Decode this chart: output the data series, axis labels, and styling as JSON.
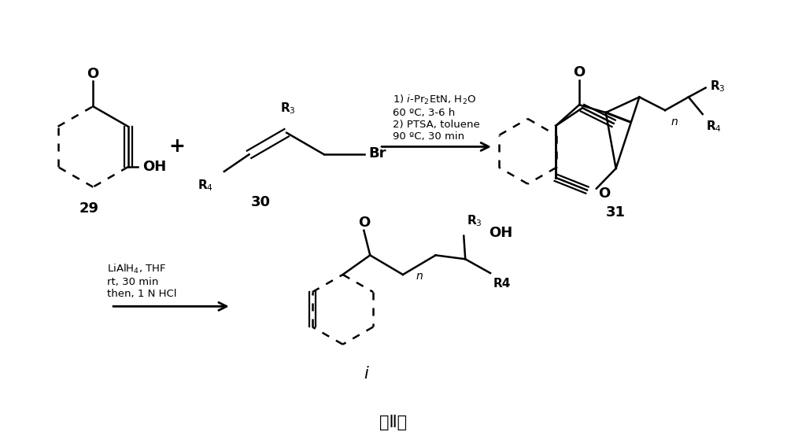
{
  "background_color": "#ffffff",
  "figure_width": 10.0,
  "figure_height": 5.63,
  "dpi": 100,
  "text_color": "#000000",
  "compound_29_label": "29",
  "compound_30_label": "30",
  "compound_31_label": "31",
  "compound_i_label": "i",
  "footer_text": "式Ⅱ。",
  "font_size_label": 13,
  "font_size_conditions": 9.5,
  "font_size_footer": 15,
  "font_size_atom": 13,
  "font_size_sub": 11
}
